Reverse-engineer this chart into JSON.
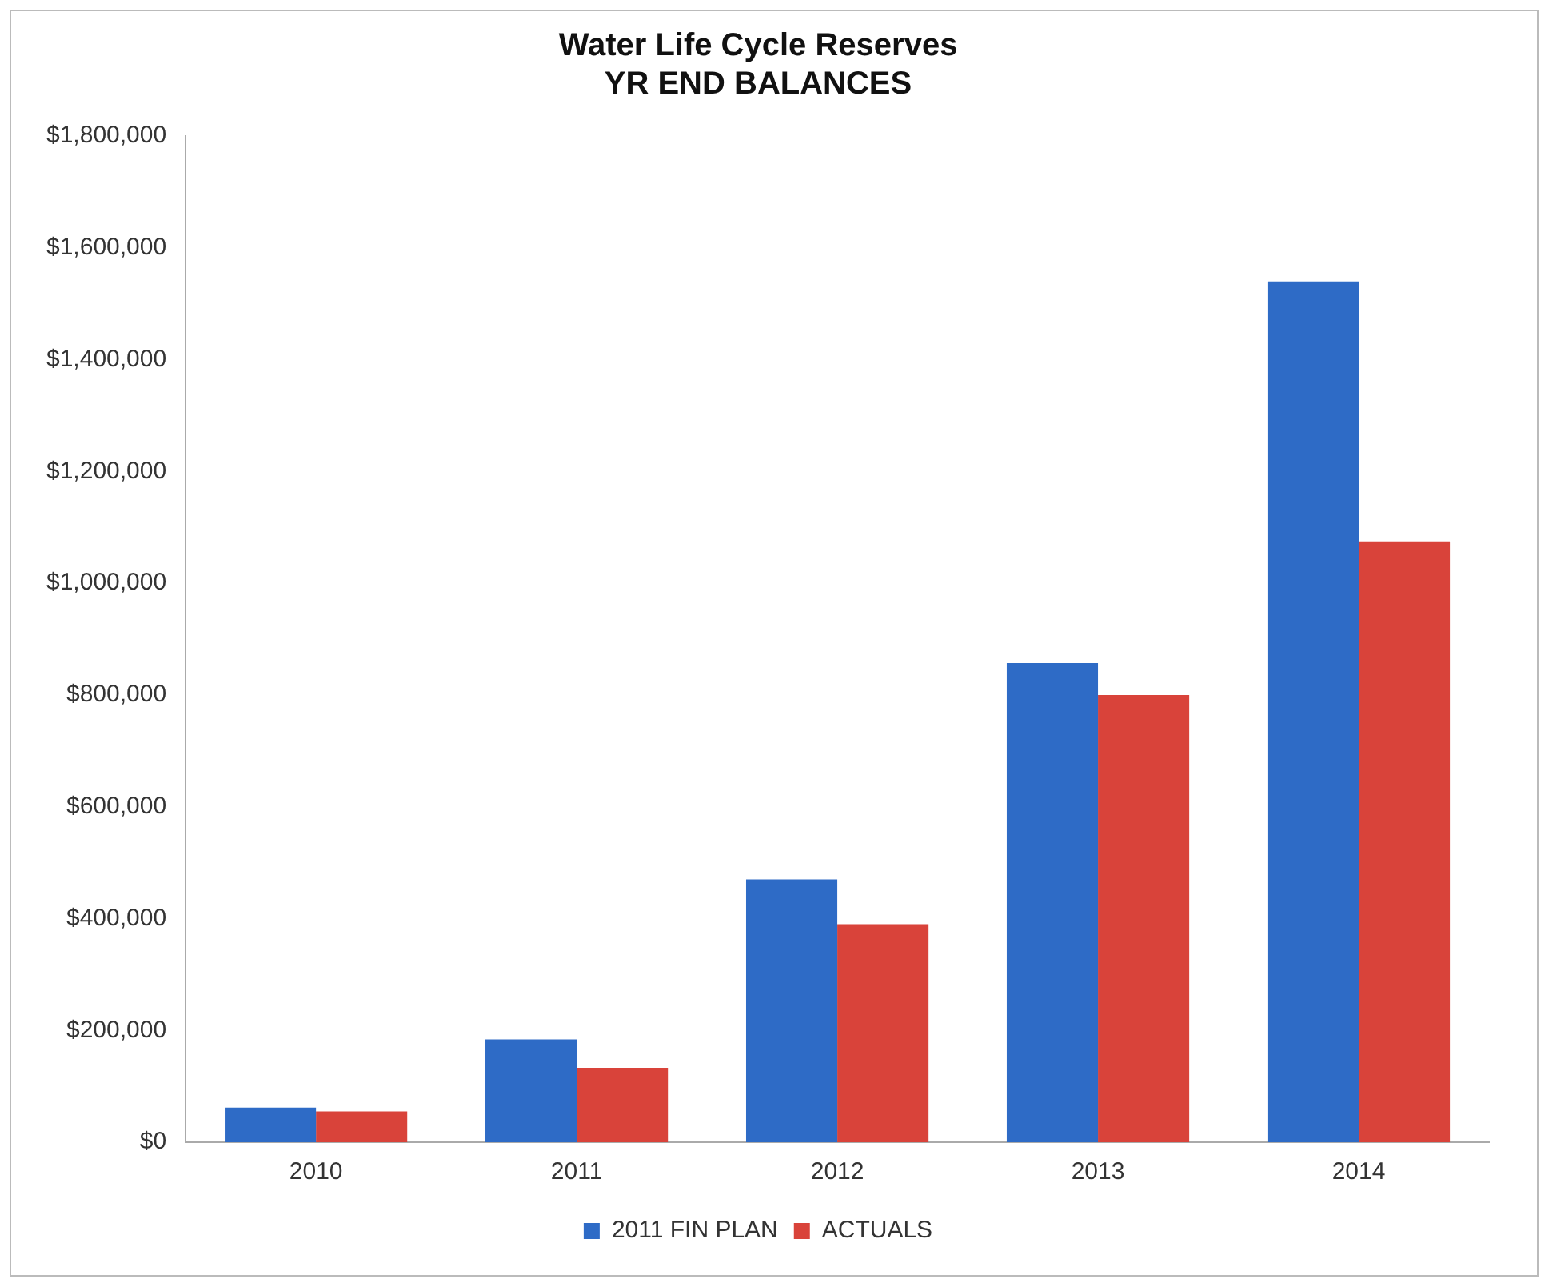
{
  "chart_data": {
    "type": "bar",
    "title": [
      "Water Life Cycle Reserves",
      "YR END BALANCES"
    ],
    "categories": [
      "2010",
      "2011",
      "2012",
      "2013",
      "2014"
    ],
    "series": [
      {
        "name": "2011 FIN PLAN",
        "color": "#2e6bc6",
        "values": [
          62000,
          184000,
          470000,
          857000,
          1540000
        ]
      },
      {
        "name": "ACTUALS",
        "color": "#d9433a",
        "values": [
          55000,
          133000,
          390000,
          800000,
          1075000
        ]
      }
    ],
    "ylim": [
      0,
      1800000
    ],
    "yticks": [
      {
        "value": 0,
        "label": "$0"
      },
      {
        "value": 200000,
        "label": "$200,000"
      },
      {
        "value": 400000,
        "label": "$400,000"
      },
      {
        "value": 600000,
        "label": "$600,000"
      },
      {
        "value": 800000,
        "label": "$800,000"
      },
      {
        "value": 1000000,
        "label": "$1,000,000"
      },
      {
        "value": 1200000,
        "label": "$1,200,000"
      },
      {
        "value": 1400000,
        "label": "$1,400,000"
      },
      {
        "value": 1600000,
        "label": "$1,600,000"
      },
      {
        "value": 1800000,
        "label": "$1,800,000"
      }
    ],
    "grid": false,
    "legend": "bottom"
  }
}
